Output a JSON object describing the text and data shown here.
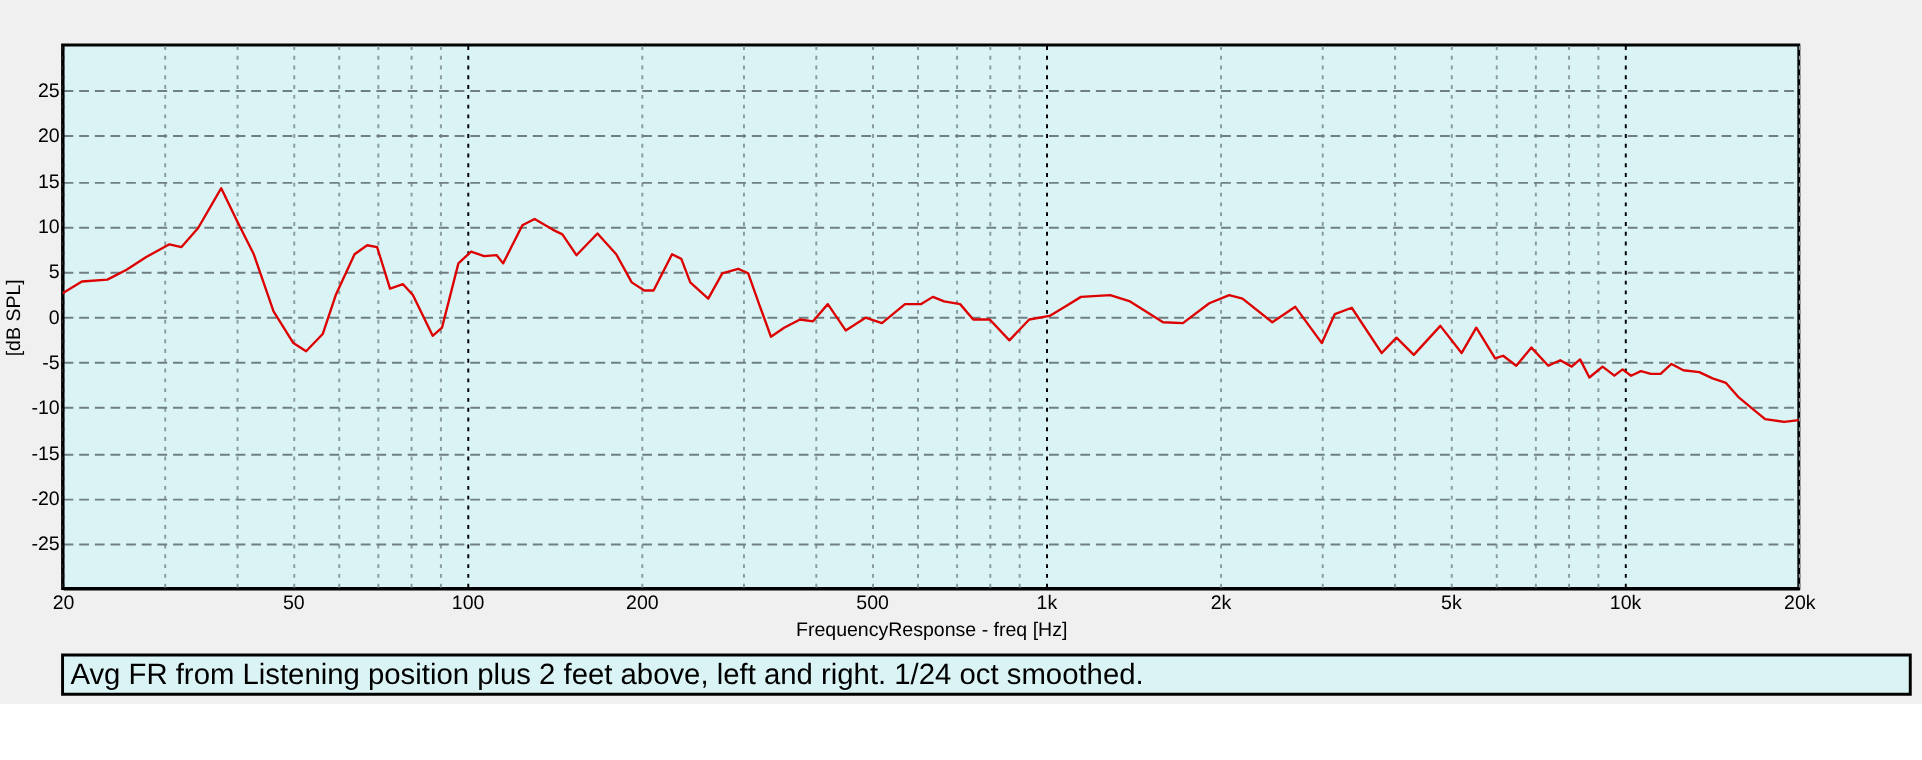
{
  "chart_data": {
    "type": "line",
    "xlabel": "FrequencyResponse - freq [Hz]",
    "ylabel": "[dB SPL]",
    "annotations": [
      "Avg FR from Listening position plus 2 feet above, left and right. 1/24 oct smoothed."
    ],
    "log": "x",
    "grid": true,
    "marker": "none",
    "line_style": "solid",
    "xlim": [
      20,
      20000
    ],
    "ylim": [
      -30,
      30
    ],
    "xticks": [
      20,
      {
        "value": 30,
        "label": null
      },
      {
        "value": 40,
        "label": null
      },
      50,
      {
        "value": 60,
        "label": null
      },
      {
        "value": 70,
        "label": null
      },
      {
        "value": 80,
        "label": null
      },
      {
        "value": 90,
        "label": null
      },
      100,
      200,
      {
        "value": 300,
        "label": null
      },
      {
        "value": 400,
        "label": null
      },
      500,
      {
        "value": 600,
        "label": null
      },
      {
        "value": 700,
        "label": null
      },
      {
        "value": 800,
        "label": null
      },
      {
        "value": 900,
        "label": null
      },
      {
        "value": 1000,
        "label": "1k"
      },
      {
        "value": 2000,
        "label": "2k"
      },
      {
        "value": 3000,
        "label": null
      },
      {
        "value": 4000,
        "label": null
      },
      {
        "value": 5000,
        "label": "5k"
      },
      {
        "value": 6000,
        "label": null
      },
      {
        "value": 7000,
        "label": null
      },
      {
        "value": 8000,
        "label": null
      },
      {
        "value": 9000,
        "label": null
      },
      {
        "value": 10000,
        "label": "10k"
      },
      {
        "value": 20000,
        "label": "20k"
      }
    ],
    "yticks": [
      -25,
      -20,
      -15,
      -10,
      -5,
      0,
      5,
      10,
      15,
      20,
      25
    ],
    "series": [
      {
        "color": "#dd0000",
        "x": [
          20,
          21.6,
          23.9,
          25.8,
          27.9,
          30.6,
          32.1,
          34.3,
          37.6,
          40.1,
          42.8,
          46.3,
          50.1,
          52.7,
          56.3,
          59.3,
          63.9,
          67.2,
          69.9,
          73.6,
          77.5,
          80.6,
          87.2,
          90.5,
          96.6,
          101.6,
          107,
          112.5,
          115.4,
          124.6,
          130.8,
          140.8,
          146.1,
          154.5,
          168,
          181,
          192.5,
          202.4,
          210,
          226,
          234.5,
          243,
          261,
          276,
          294,
          306,
          320,
          335,
          353,
          376,
          396,
          420,
          451,
          488,
          521,
          571,
          609,
          638,
          667,
          711,
          749,
          800,
          865,
          936,
          1015,
          1084,
          1150,
          1292,
          1398,
          1594,
          1725,
          1916,
          2074,
          2187,
          2462,
          2698,
          2998,
          3158,
          3377,
          3805,
          4035,
          4323,
          4804,
          5228,
          5543,
          5974,
          6168,
          6498,
          6903,
          7382,
          7740,
          8100,
          8377,
          8692,
          9160,
          9600,
          9920,
          10260,
          10670,
          11100,
          11540,
          12050,
          12630,
          13460,
          14190,
          14970,
          15750,
          16600,
          17490,
          18870,
          20000
        ],
        "values": [
          2.6,
          3.9,
          4.1,
          5.2,
          6.6,
          8.0,
          7.7,
          9.8,
          14.2,
          10.5,
          6.9,
          0.6,
          -2.9,
          -3.8,
          -1.9,
          2.4,
          6.9,
          7.9,
          7.7,
          3.1,
          3.6,
          2.4,
          -2.1,
          -1.2,
          5.9,
          7.2,
          6.7,
          6.8,
          5.9,
          10.1,
          10.8,
          9.6,
          9.1,
          6.8,
          9.2,
          6.9,
          3.8,
          2.9,
          2.9,
          6.9,
          6.4,
          3.8,
          2.0,
          4.8,
          5.3,
          4.8,
          1.3,
          -2.2,
          -1.2,
          -0.3,
          -0.5,
          1.4,
          -1.5,
          -0.1,
          -0.7,
          1.4,
          1.4,
          2.2,
          1.7,
          1.4,
          -0.3,
          -0.3,
          -2.6,
          -0.3,
          0.1,
          1.2,
          2.2,
          2.4,
          1.7,
          -0.6,
          -0.7,
          1.5,
          2.4,
          2.0,
          -0.6,
          1.1,
          -2.9,
          0.3,
          1.0,
          -4.0,
          -2.3,
          -4.2,
          -1.0,
          -4.0,
          -1.2,
          -4.6,
          -4.3,
          -5.4,
          -3.4,
          -5.4,
          -4.8,
          -5.5,
          -4.7,
          -6.7,
          -5.5,
          -6.5,
          -5.8,
          -6.5,
          -6.0,
          -6.3,
          -6.3,
          -5.2,
          -5.9,
          -6.1,
          -6.8,
          -7.3,
          -8.9,
          -10.1,
          -11.3,
          -11.6,
          -11.4
        ]
      }
    ]
  }
}
